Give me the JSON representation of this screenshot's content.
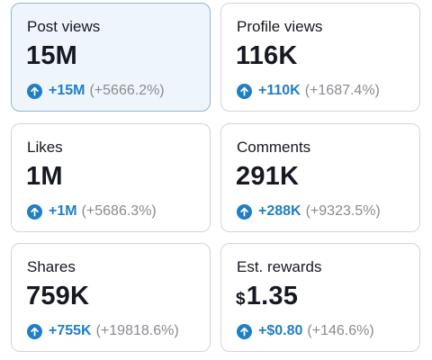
{
  "accent_color": "#1f7fc6",
  "muted_color": "#8a8b91",
  "cards": [
    {
      "label": "Post views",
      "value": "15M",
      "delta": "+15M",
      "delta_pct": "(+5666.2%)",
      "icon": "arrow-up-circle-icon",
      "selected": true
    },
    {
      "label": "Profile views",
      "value": "116K",
      "delta": "+110K",
      "delta_pct": "(+1687.4%)",
      "icon": "arrow-up-circle-icon"
    },
    {
      "label": "Likes",
      "value": "1M",
      "delta": "+1M",
      "delta_pct": "(+5686.3%)",
      "icon": "arrow-up-circle-icon"
    },
    {
      "label": "Comments",
      "value": "291K",
      "delta": "+288K",
      "delta_pct": "(+9323.5%)",
      "icon": "arrow-up-circle-icon"
    },
    {
      "label": "Shares",
      "value": "759K",
      "delta": "+755K",
      "delta_pct": "(+19818.6%)",
      "icon": "arrow-up-circle-icon"
    },
    {
      "label": "Est. rewards",
      "value_currency": "$",
      "value": "1.35",
      "delta": "+$0.80",
      "delta_pct": "(+146.6%)",
      "icon": "arrow-up-circle-icon"
    }
  ]
}
